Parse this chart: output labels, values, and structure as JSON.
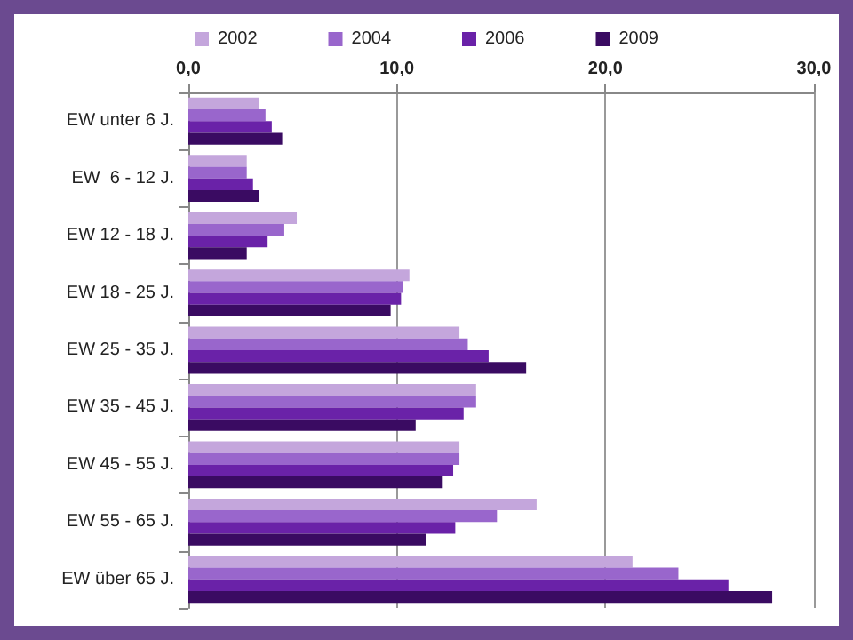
{
  "chart_data": {
    "type": "bar",
    "orientation": "horizontal",
    "categories": [
      "EW unter 6 J.",
      "EW  6 - 12 J.",
      "EW 12 - 18 J.",
      "EW 18 - 25 J.",
      "EW 25 - 35 J.",
      "EW 35 - 45 J.",
      "EW 45 - 55 J.",
      "EW 55 - 65 J.",
      "EW über 65 J."
    ],
    "series": [
      {
        "name": "2002",
        "color": "#c4a6dc",
        "values": [
          3.4,
          2.8,
          5.2,
          10.6,
          13.0,
          13.8,
          13.0,
          16.7,
          21.3
        ]
      },
      {
        "name": "2004",
        "color": "#9966cc",
        "values": [
          3.7,
          2.8,
          4.6,
          10.3,
          13.4,
          13.8,
          13.0,
          14.8,
          23.5
        ]
      },
      {
        "name": "2006",
        "color": "#6a22a8",
        "values": [
          4.0,
          3.1,
          3.8,
          10.2,
          14.4,
          13.2,
          12.7,
          12.8,
          25.9
        ]
      },
      {
        "name": "2009",
        "color": "#3a0b62",
        "values": [
          4.5,
          3.4,
          2.8,
          9.7,
          16.2,
          10.9,
          12.2,
          11.4,
          28.0
        ]
      }
    ],
    "xlim": [
      0,
      30
    ],
    "xticks": [
      {
        "value": 0,
        "label": "0,0"
      },
      {
        "value": 10,
        "label": "10,0"
      },
      {
        "value": 20,
        "label": "20,0"
      },
      {
        "value": 30,
        "label": "30,0"
      }
    ],
    "grid": "x",
    "legend": "top"
  }
}
